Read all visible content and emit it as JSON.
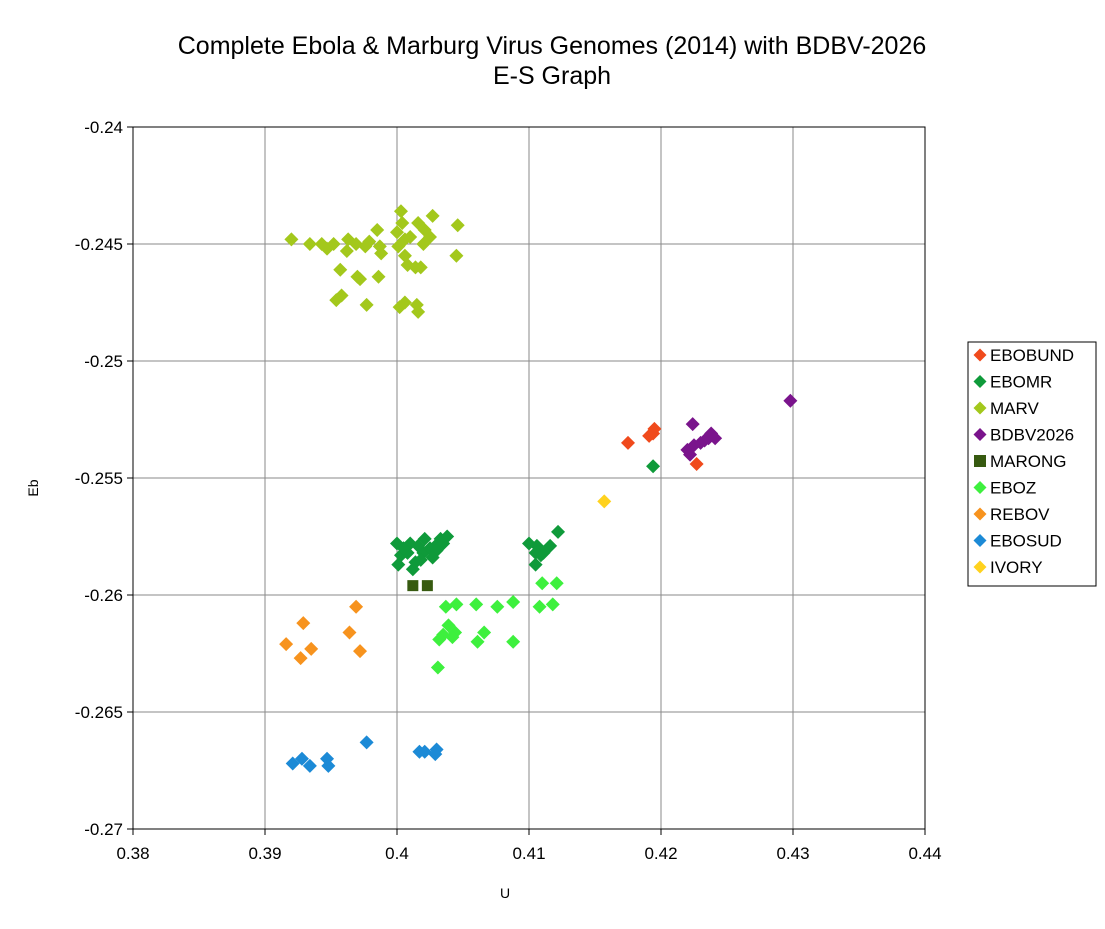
{
  "chart_data": {
    "type": "scatter",
    "title": "Complete Ebola & Marburg Virus Genomes (2014) with BDBV-2026",
    "subtitle": "E-S Graph",
    "xlabel": "U",
    "ylabel": "Eb",
    "xlim": [
      0.38,
      0.44
    ],
    "ylim": [
      -0.27,
      -0.24
    ],
    "x_ticks": [
      "0.38",
      "0.39",
      "0.4",
      "0.41",
      "0.42",
      "0.43",
      "0.44"
    ],
    "y_ticks": [
      "-0.24",
      "-0.245",
      "-0.25",
      "-0.255",
      "-0.26",
      "-0.265",
      "-0.27"
    ],
    "grid": "horizontal and vertical major gridlines",
    "legend_position": "right",
    "series": [
      {
        "name": "EBOBUND",
        "color": "#f04a1c",
        "marker": "diamond",
        "points": [
          [
            0.4175,
            -0.2535
          ],
          [
            0.4191,
            -0.2532
          ],
          [
            0.4194,
            -0.2531
          ],
          [
            0.4195,
            -0.2529
          ],
          [
            0.4227,
            -0.2544
          ]
        ]
      },
      {
        "name": "EBOMR",
        "color": "#0f9a3a",
        "marker": "diamond",
        "points": [
          [
            0.4194,
            -0.2545
          ],
          [
            0.4122,
            -0.2573
          ],
          [
            0.4116,
            -0.2579
          ],
          [
            0.4106,
            -0.2579
          ],
          [
            0.4109,
            -0.2583
          ],
          [
            0.4105,
            -0.2587
          ],
          [
            0.4111,
            -0.2582
          ],
          [
            0.41,
            -0.2578
          ],
          [
            0.4105,
            -0.2582
          ],
          [
            0.4038,
            -0.2575
          ],
          [
            0.4031,
            -0.2578
          ],
          [
            0.4021,
            -0.2576
          ],
          [
            0.401,
            -0.2578
          ],
          [
            0.4,
            -0.2578
          ],
          [
            0.4003,
            -0.2583
          ],
          [
            0.4001,
            -0.2587
          ],
          [
            0.4012,
            -0.2589
          ],
          [
            0.4014,
            -0.2586
          ],
          [
            0.402,
            -0.2582
          ],
          [
            0.4025,
            -0.258
          ],
          [
            0.403,
            -0.2581
          ],
          [
            0.4035,
            -0.2578
          ],
          [
            0.4008,
            -0.2582
          ],
          [
            0.4016,
            -0.2579
          ],
          [
            0.4027,
            -0.2584
          ],
          [
            0.4018,
            -0.2585
          ],
          [
            0.4005,
            -0.258
          ],
          [
            0.4033,
            -0.2576
          ]
        ]
      },
      {
        "name": "MARV",
        "color": "#a3c81c",
        "marker": "diamond",
        "points": [
          [
            0.392,
            -0.2448
          ],
          [
            0.3943,
            -0.245
          ],
          [
            0.3947,
            -0.2452
          ],
          [
            0.3952,
            -0.245
          ],
          [
            0.3957,
            -0.2461
          ],
          [
            0.3962,
            -0.2453
          ],
          [
            0.3963,
            -0.2448
          ],
          [
            0.3969,
            -0.245
          ],
          [
            0.397,
            -0.2464
          ],
          [
            0.3976,
            -0.2451
          ],
          [
            0.3979,
            -0.2449
          ],
          [
            0.3985,
            -0.2444
          ],
          [
            0.3987,
            -0.2451
          ],
          [
            0.3986,
            -0.2464
          ],
          [
            0.3988,
            -0.2454
          ],
          [
            0.3954,
            -0.2474
          ],
          [
            0.3958,
            -0.2472
          ],
          [
            0.3977,
            -0.2476
          ],
          [
            0.4,
            -0.2445
          ],
          [
            0.4001,
            -0.2451
          ],
          [
            0.4003,
            -0.2436
          ],
          [
            0.4004,
            -0.2441
          ],
          [
            0.4006,
            -0.2448
          ],
          [
            0.4006,
            -0.2455
          ],
          [
            0.4008,
            -0.2459
          ],
          [
            0.401,
            -0.2447
          ],
          [
            0.4014,
            -0.246
          ],
          [
            0.4016,
            -0.2441
          ],
          [
            0.4018,
            -0.246
          ],
          [
            0.402,
            -0.245
          ],
          [
            0.4021,
            -0.2444
          ],
          [
            0.4025,
            -0.2447
          ],
          [
            0.4027,
            -0.2438
          ],
          [
            0.4046,
            -0.2442
          ],
          [
            0.4045,
            -0.2455
          ],
          [
            0.4002,
            -0.2477
          ],
          [
            0.4006,
            -0.2475
          ],
          [
            0.4015,
            -0.2476
          ],
          [
            0.4016,
            -0.2479
          ],
          [
            0.3972,
            -0.2465
          ],
          [
            0.3934,
            -0.245
          ]
        ]
      },
      {
        "name": "BDBV2026",
        "color": "#7a148c",
        "marker": "diamond",
        "points": [
          [
            0.4298,
            -0.2517
          ],
          [
            0.4224,
            -0.2527
          ],
          [
            0.422,
            -0.2538
          ],
          [
            0.4222,
            -0.254
          ],
          [
            0.4225,
            -0.2536
          ],
          [
            0.423,
            -0.2535
          ],
          [
            0.4233,
            -0.2534
          ],
          [
            0.4236,
            -0.2533
          ],
          [
            0.4238,
            -0.2531
          ],
          [
            0.4241,
            -0.2533
          ]
        ]
      },
      {
        "name": "MARONG",
        "color": "#375a10",
        "marker": "square",
        "points": [
          [
            0.4012,
            -0.2596
          ],
          [
            0.4023,
            -0.2596
          ]
        ]
      },
      {
        "name": "EBOZ",
        "color": "#3ef03e",
        "marker": "diamond",
        "points": [
          [
            0.4121,
            -0.2595
          ],
          [
            0.411,
            -0.2595
          ],
          [
            0.4118,
            -0.2604
          ],
          [
            0.4108,
            -0.2605
          ],
          [
            0.4088,
            -0.2603
          ],
          [
            0.4076,
            -0.2605
          ],
          [
            0.406,
            -0.2604
          ],
          [
            0.4045,
            -0.2604
          ],
          [
            0.4037,
            -0.2605
          ],
          [
            0.4039,
            -0.2613
          ],
          [
            0.4044,
            -0.2616
          ],
          [
            0.4042,
            -0.2618
          ],
          [
            0.4035,
            -0.2617
          ],
          [
            0.4032,
            -0.2619
          ],
          [
            0.4066,
            -0.2616
          ],
          [
            0.4061,
            -0.262
          ],
          [
            0.4088,
            -0.262
          ],
          [
            0.4031,
            -0.2631
          ]
        ]
      },
      {
        "name": "REBOV",
        "color": "#f7931e",
        "marker": "diamond",
        "points": [
          [
            0.3969,
            -0.2605
          ],
          [
            0.3929,
            -0.2612
          ],
          [
            0.3964,
            -0.2616
          ],
          [
            0.3916,
            -0.2621
          ],
          [
            0.3935,
            -0.2623
          ],
          [
            0.3972,
            -0.2624
          ],
          [
            0.3927,
            -0.2627
          ]
        ]
      },
      {
        "name": "EBOSUD",
        "color": "#1c8ad6",
        "marker": "diamond",
        "points": [
          [
            0.3977,
            -0.2663
          ],
          [
            0.3947,
            -0.267
          ],
          [
            0.3928,
            -0.267
          ],
          [
            0.3921,
            -0.2672
          ],
          [
            0.3934,
            -0.2673
          ],
          [
            0.3948,
            -0.2673
          ],
          [
            0.4017,
            -0.2667
          ],
          [
            0.4021,
            -0.2667
          ],
          [
            0.403,
            -0.2666
          ],
          [
            0.4029,
            -0.2668
          ]
        ]
      },
      {
        "name": "IVORY",
        "color": "#ffd21e",
        "marker": "diamond",
        "points": [
          [
            0.4157,
            -0.256
          ]
        ]
      }
    ]
  }
}
